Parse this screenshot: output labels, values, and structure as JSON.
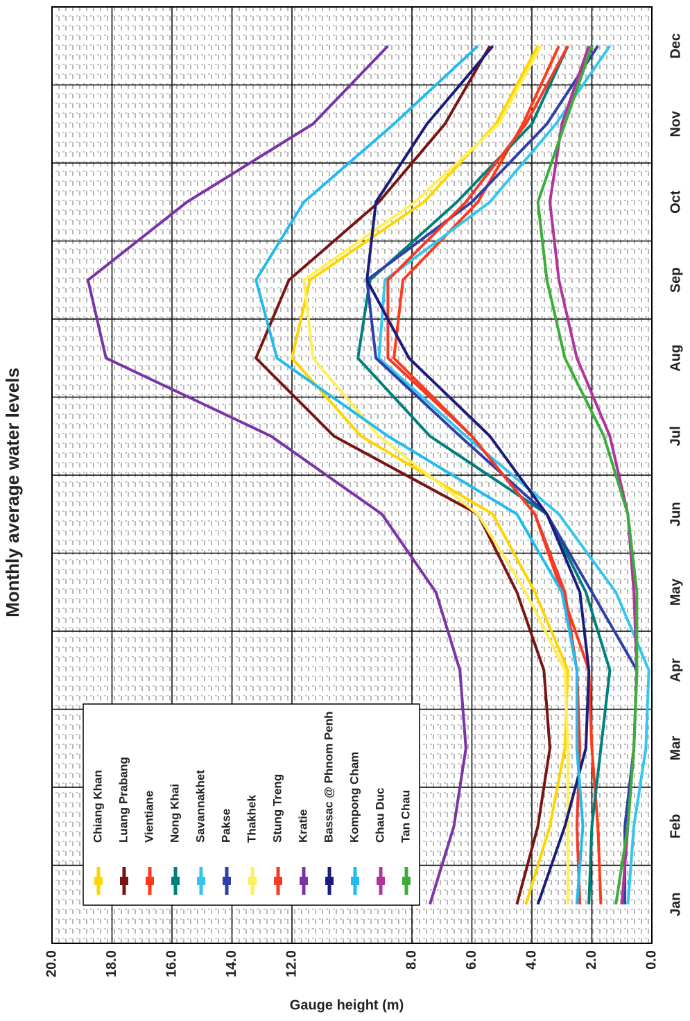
{
  "chart_data": {
    "type": "line",
    "title": "Monthly average water levels",
    "y_label": "Gauge height (m)",
    "categories": [
      "Jan",
      "Feb",
      "Mar",
      "Apr",
      "May",
      "Jun",
      "Jul",
      "Aug",
      "Sep",
      "Oct",
      "Nov",
      "Dec"
    ],
    "ylim": [
      0,
      20
    ],
    "yticks": [
      {
        "value": 0,
        "label": "0.0"
      },
      {
        "value": 2,
        "label": "2.0"
      },
      {
        "value": 4,
        "label": "4.0"
      },
      {
        "value": 6,
        "label": "6.0"
      },
      {
        "value": 8,
        "label": "8.0"
      },
      {
        "value": 12,
        "label": "12.0"
      },
      {
        "value": 14,
        "label": "14.0"
      },
      {
        "value": 16,
        "label": "16.0"
      },
      {
        "value": 18,
        "label": "18.0"
      },
      {
        "value": 20,
        "label": "20.0"
      }
    ],
    "grid": true,
    "legend": "upper left",
    "series": [
      {
        "name": "Chiang Khan",
        "color": "#ffd500",
        "values": [
          4.2,
          3.4,
          2.9,
          2.8,
          3.9,
          5.3,
          9.7,
          12.0,
          11.4,
          7.6,
          5.2,
          3.8
        ]
      },
      {
        "name": "Luang Prabang",
        "color": "#7a1414",
        "values": [
          4.5,
          3.8,
          3.4,
          3.6,
          4.5,
          5.8,
          10.6,
          13.2,
          12.1,
          9.1,
          6.9,
          5.4
        ]
      },
      {
        "name": "Vientiane",
        "color": "#ff3a1a",
        "values": [
          1.7,
          1.8,
          2.0,
          2.1,
          3.0,
          3.9,
          6.0,
          8.6,
          8.3,
          5.8,
          4.3,
          3.1
        ]
      },
      {
        "name": "Nong Khai",
        "color": "#00807a",
        "values": [
          2.1,
          2.0,
          1.7,
          1.4,
          2.2,
          3.5,
          7.4,
          9.8,
          9.4,
          6.5,
          4.0,
          2.8
        ]
      },
      {
        "name": "Savannakhet",
        "color": "#33c6ee",
        "values": [
          0.8,
          0.6,
          0.2,
          0.1,
          1.2,
          3.1,
          6.2,
          9.1,
          8.9,
          5.4,
          3.2,
          1.4
        ]
      },
      {
        "name": "Pakse",
        "color": "#2e3fa8",
        "values": [
          0.9,
          0.9,
          0.6,
          0.5,
          2.0,
          3.5,
          6.4,
          9.2,
          9.5,
          6.0,
          3.5,
          1.8
        ]
      },
      {
        "name": "Thakhek",
        "color": "#ffef5a",
        "values": [
          2.8,
          2.8,
          2.8,
          2.9,
          4.2,
          5.8,
          9.1,
          11.3,
          11.6,
          7.9,
          5.1,
          3.7
        ]
      },
      {
        "name": "Stung Treng",
        "color": "#f03c28",
        "values": [
          2.4,
          2.5,
          2.4,
          2.5,
          2.9,
          3.9,
          6.0,
          8.8,
          8.8,
          6.2,
          4.2,
          2.8
        ]
      },
      {
        "name": "Kratie",
        "color": "#7a34a6",
        "values": [
          7.4,
          6.6,
          6.2,
          6.4,
          7.2,
          9.0,
          12.7,
          18.2,
          18.8,
          15.5,
          11.3,
          8.8
        ]
      },
      {
        "name": "Bassac @ Phnom Penh",
        "color": "#1c1c7c",
        "values": [
          3.8,
          2.9,
          2.2,
          2.1,
          2.4,
          3.5,
          5.4,
          8.1,
          9.5,
          9.2,
          7.5,
          5.3
        ]
      },
      {
        "name": "Kompong Cham",
        "color": "#22bbee",
        "values": [
          2.5,
          2.3,
          2.5,
          2.5,
          3.0,
          4.5,
          8.8,
          12.5,
          13.2,
          11.6,
          8.6,
          5.8
        ]
      },
      {
        "name": "Chau Duc",
        "color": "#b0349c",
        "values": [
          1.0,
          0.8,
          0.6,
          0.5,
          0.6,
          0.8,
          1.4,
          2.5,
          3.1,
          3.4,
          3.0,
          2.1
        ]
      },
      {
        "name": "Tan Chau",
        "color": "#3aad3a",
        "values": [
          1.2,
          0.8,
          0.6,
          0.5,
          0.5,
          0.8,
          1.6,
          2.9,
          3.5,
          3.8,
          2.9,
          2.0
        ]
      }
    ]
  }
}
